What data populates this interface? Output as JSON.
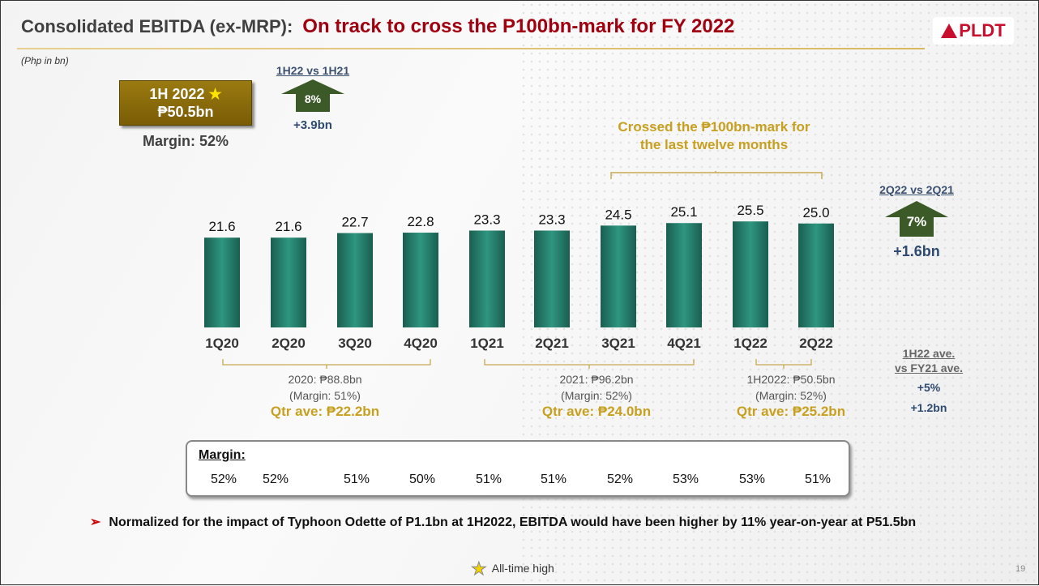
{
  "header": {
    "title_main": "Consolidated EBITDA (ex-MRP):",
    "title_highlight": "On track to cross the P100bn-mark for FY 2022",
    "logo": "PLDT"
  },
  "unit_note": "(Php in bn)",
  "highlight_box": {
    "line1": "1H 2022",
    "star": "★",
    "line2": "₱50.5bn",
    "margin": "Margin:  52%"
  },
  "comparison_1h": {
    "heading": "1H22 vs 1H21",
    "pct": "8%",
    "delta": "+3.9bn"
  },
  "comparison_2q": {
    "heading": "2Q22 vs 2Q21",
    "pct": "7%",
    "delta": "+1.6bn"
  },
  "comparison_avg": {
    "heading_line1": "1H22 ave.",
    "heading_line2": "vs FY21 ave.",
    "pct": "+5%",
    "delta": "+1.2bn"
  },
  "ltm_note": {
    "line1": "Crossed the ₱100bn-mark for",
    "line2": "the last twelve months"
  },
  "groups": [
    {
      "total": "2020:  ₱88.8bn",
      "margin": "(Margin:  51%)",
      "avg": "Qtr ave: ₱22.2bn"
    },
    {
      "total": "2021:  ₱96.2bn",
      "margin": "(Margin:  52%)",
      "avg": "Qtr ave: ₱24.0bn"
    },
    {
      "total": "1H2022:  ₱50.5bn",
      "margin": "(Margin:  52%)",
      "avg": "Qtr ave: ₱25.2bn"
    }
  ],
  "margins": {
    "label": "Margin:",
    "values": [
      "52%",
      "52%",
      "51%",
      "50%",
      "51%",
      "51%",
      "52%",
      "53%",
      "53%",
      "51%"
    ]
  },
  "bullet": "Normalized for the impact of Typhoon Odette of P1.1bn at 1H2022, EBITDA would have been higher by 11% year-on-year at P51.5bn",
  "legend": {
    "star": "★",
    "label": "All-time high"
  },
  "page_number": "19",
  "colors": {
    "bar": "#1f7a68",
    "title_red": "#a00010",
    "gold": "#c8a020",
    "arrow_green": "#3c5a28"
  },
  "chart_data": {
    "type": "bar",
    "categories": [
      "1Q20",
      "2Q20",
      "3Q20",
      "4Q20",
      "1Q21",
      "2Q21",
      "3Q21",
      "4Q21",
      "1Q22",
      "2Q22"
    ],
    "values": [
      21.6,
      21.6,
      22.7,
      22.8,
      23.3,
      23.3,
      24.5,
      25.1,
      25.5,
      25.0
    ],
    "data_labels": [
      "21.6",
      "21.6",
      "22.7",
      "22.8",
      "23.3",
      "23.3",
      "24.5",
      "25.1",
      "25.5",
      "25.0"
    ],
    "ylabel": "(Php in bn)",
    "grid": false,
    "legend": "none"
  }
}
